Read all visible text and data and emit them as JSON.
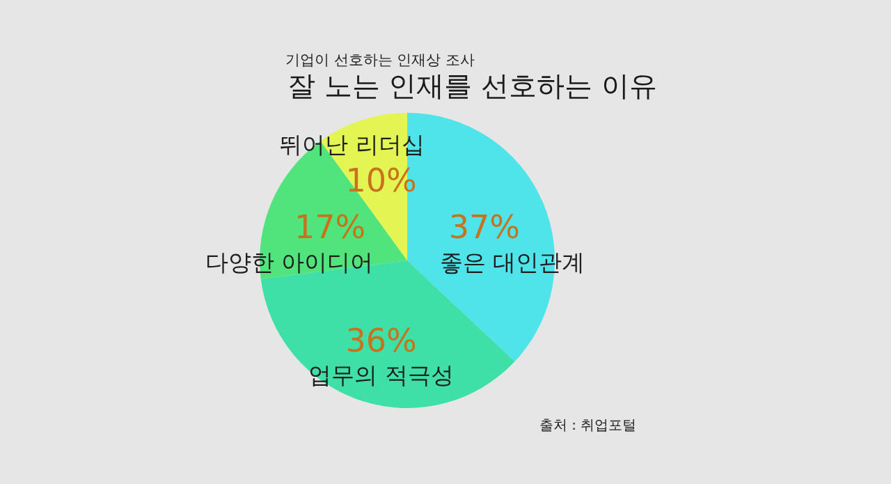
{
  "chart_data": {
    "type": "pie",
    "subtitle": "기업이 선호하는 인재상 조사",
    "title": "잘 노는 인재를 선호하는 이유",
    "categories": [
      "좋은 대인관계",
      "업무의 적극성",
      "다양한 아이디어",
      "뛰어난 리더십"
    ],
    "values": [
      37,
      36,
      17,
      10
    ],
    "colors": [
      "#4fe3ea",
      "#3ee0a8",
      "#52e47c",
      "#e2f552"
    ],
    "value_labels": [
      "37%",
      "36%",
      "17%",
      "10%"
    ],
    "annotations": [
      "출처 : 취업포털"
    ]
  }
}
